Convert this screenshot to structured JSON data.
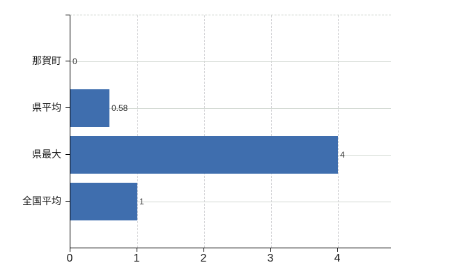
{
  "chart_data": {
    "type": "bar",
    "orientation": "horizontal",
    "title": "",
    "xlabel": "",
    "ylabel": "",
    "categories": [
      "那賀町",
      "県平均",
      "県最大",
      "全国平均"
    ],
    "values": [
      0,
      0.58,
      4,
      1
    ],
    "value_labels": [
      "0",
      "0.58",
      "4",
      "1"
    ],
    "x_ticks": [
      0,
      1,
      2,
      3,
      4
    ],
    "x_tick_labels": [
      "0",
      "1",
      "2",
      "3",
      "4"
    ],
    "xlim": [
      0,
      4.79
    ],
    "grid": true,
    "legend": false,
    "bar_color": "#3f6eae",
    "axis_color": "#000000",
    "hgrid_color": "#d3d9d3",
    "vgrid_color": "#d3d3d6",
    "background_color": "#ffffff"
  }
}
